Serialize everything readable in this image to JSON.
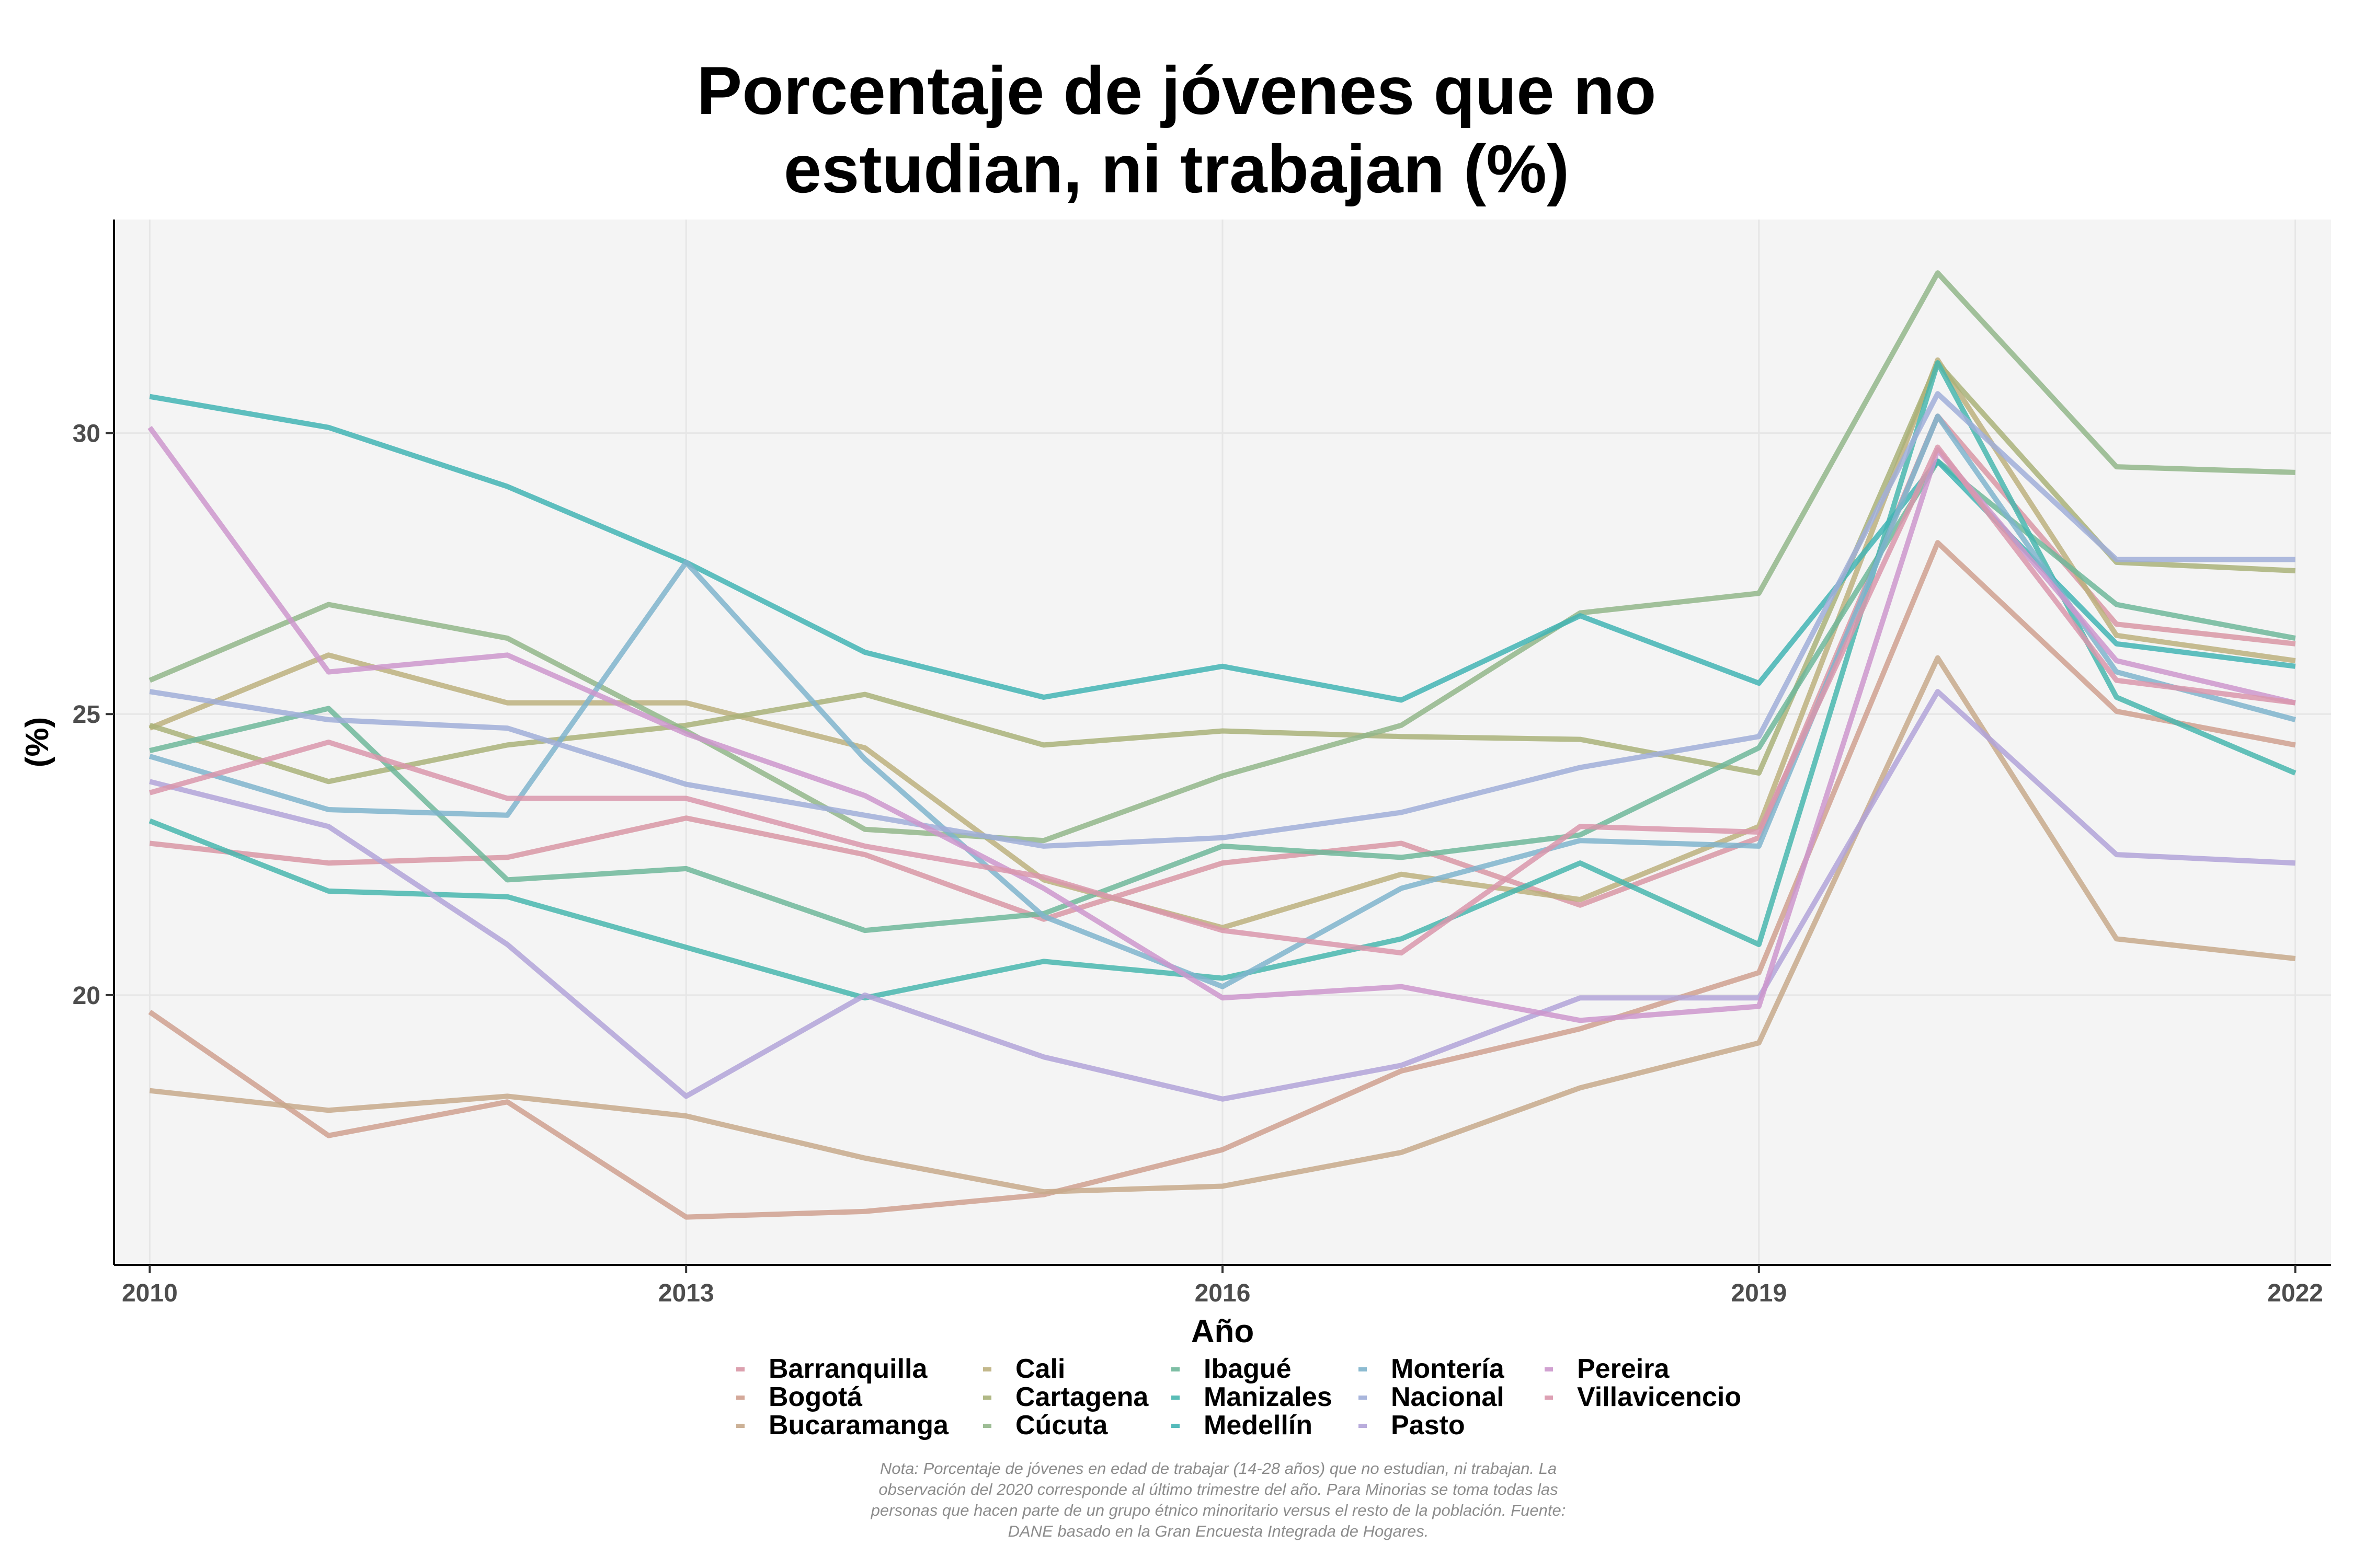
{
  "chart_data": {
    "type": "line",
    "title": [
      "Porcentaje de jóvenes que no",
      "estudian, ni trabajan (%)"
    ],
    "xlabel": "Año",
    "ylabel": "(%)",
    "xlim": [
      2009.8,
      2022.2
    ],
    "ylim": [
      15.2,
      33.8
    ],
    "x_ticks": [
      2010,
      2013,
      2016,
      2019,
      2022
    ],
    "x_tick_labels": [
      "2010",
      "2013",
      "2016",
      "2019",
      "2022"
    ],
    "y_ticks": [
      20,
      25,
      30
    ],
    "y_tick_labels": [
      "20",
      "25",
      "30"
    ],
    "grid": true,
    "legend_position": "bottom",
    "x": [
      2010,
      2011,
      2012,
      2013,
      2014,
      2015,
      2016,
      2017,
      2018,
      2019,
      2020,
      2021,
      2022
    ],
    "series": [
      {
        "name": "Barranquilla",
        "color": "#d896a5",
        "values": [
          22.7,
          22.35,
          22.45,
          23.15,
          22.5,
          21.35,
          22.35,
          22.7,
          21.6,
          22.8,
          30.3,
          26.6,
          26.25
        ]
      },
      {
        "name": "Bogotá",
        "color": "#cfa08f",
        "values": [
          19.7,
          17.5,
          18.1,
          16.05,
          16.15,
          16.45,
          17.25,
          18.65,
          19.4,
          20.4,
          28.05,
          25.05,
          24.45
        ]
      },
      {
        "name": "Bucaramanga",
        "color": "#c7a98b",
        "values": [
          18.3,
          17.95,
          18.2,
          17.85,
          17.1,
          16.5,
          16.6,
          17.2,
          18.35,
          19.15,
          26.0,
          21.0,
          20.65
        ]
      },
      {
        "name": "Cali",
        "color": "#bcb07e",
        "values": [
          24.75,
          26.05,
          25.2,
          25.2,
          24.4,
          22.05,
          21.2,
          22.15,
          21.7,
          23.0,
          31.3,
          26.4,
          25.95
        ]
      },
      {
        "name": "Cartagena",
        "color": "#a9b179",
        "values": [
          24.8,
          23.8,
          24.45,
          24.8,
          25.35,
          24.45,
          24.7,
          24.6,
          24.55,
          23.95,
          31.25,
          27.7,
          27.55
        ]
      },
      {
        "name": "Cúcuta",
        "color": "#92b68a",
        "values": [
          25.6,
          26.95,
          26.35,
          24.7,
          22.95,
          22.75,
          23.9,
          24.8,
          26.8,
          27.15,
          32.85,
          29.4,
          29.3
        ]
      },
      {
        "name": "Ibagué",
        "color": "#6fb79a",
        "values": [
          24.35,
          25.1,
          22.05,
          22.25,
          21.15,
          21.45,
          22.65,
          22.45,
          22.85,
          24.4,
          29.5,
          26.95,
          26.35
        ]
      },
      {
        "name": "Manizales",
        "color": "#48b6ae",
        "values": [
          23.1,
          21.85,
          21.75,
          20.85,
          19.95,
          20.6,
          20.3,
          21.0,
          22.35,
          20.9,
          31.25,
          25.3,
          23.95
        ]
      },
      {
        "name": "Medellín",
        "color": "#42b4b4",
        "values": [
          30.65,
          30.1,
          29.05,
          27.7,
          26.1,
          25.3,
          25.85,
          25.25,
          26.75,
          25.55,
          29.5,
          26.25,
          25.85
        ]
      },
      {
        "name": "Montería",
        "color": "#7fb4cc",
        "values": [
          24.25,
          23.3,
          23.2,
          27.7,
          24.2,
          21.4,
          20.15,
          21.9,
          22.75,
          22.65,
          30.3,
          25.75,
          24.9
        ]
      },
      {
        "name": "Nacional",
        "color": "#a0aed8",
        "values": [
          25.4,
          24.9,
          24.75,
          23.75,
          23.2,
          22.65,
          22.8,
          23.25,
          24.05,
          24.6,
          30.7,
          27.75,
          27.75
        ]
      },
      {
        "name": "Pasto",
        "color": "#b1a3d8",
        "values": [
          23.8,
          23.0,
          20.9,
          18.2,
          20.0,
          18.9,
          18.15,
          18.75,
          19.95,
          19.95,
          25.4,
          22.5,
          22.35
        ]
      },
      {
        "name": "Pereira",
        "color": "#cc97cc",
        "values": [
          30.1,
          25.75,
          26.05,
          24.65,
          23.55,
          21.9,
          19.95,
          20.15,
          19.55,
          19.8,
          29.7,
          25.95,
          25.2
        ]
      },
      {
        "name": "Villavicencio",
        "color": "#d997ac",
        "values": [
          23.6,
          24.5,
          23.5,
          23.5,
          22.65,
          22.1,
          21.15,
          20.75,
          23.0,
          22.9,
          29.75,
          25.6,
          25.2
        ]
      }
    ],
    "note_lines": [
      "Nota: Porcentaje de jóvenes en edad de trabajar (14-28 años) que no estudian, ni trabajan. La",
      "observación del 2020 corresponde al último trimestre del año. Para Minorias se toma todas las",
      "personas que hacen parte de un grupo étnico minoritario versus el resto de la población. Fuente:",
      "DANE basado en la Gran Encuesta Integrada de Hogares."
    ]
  }
}
